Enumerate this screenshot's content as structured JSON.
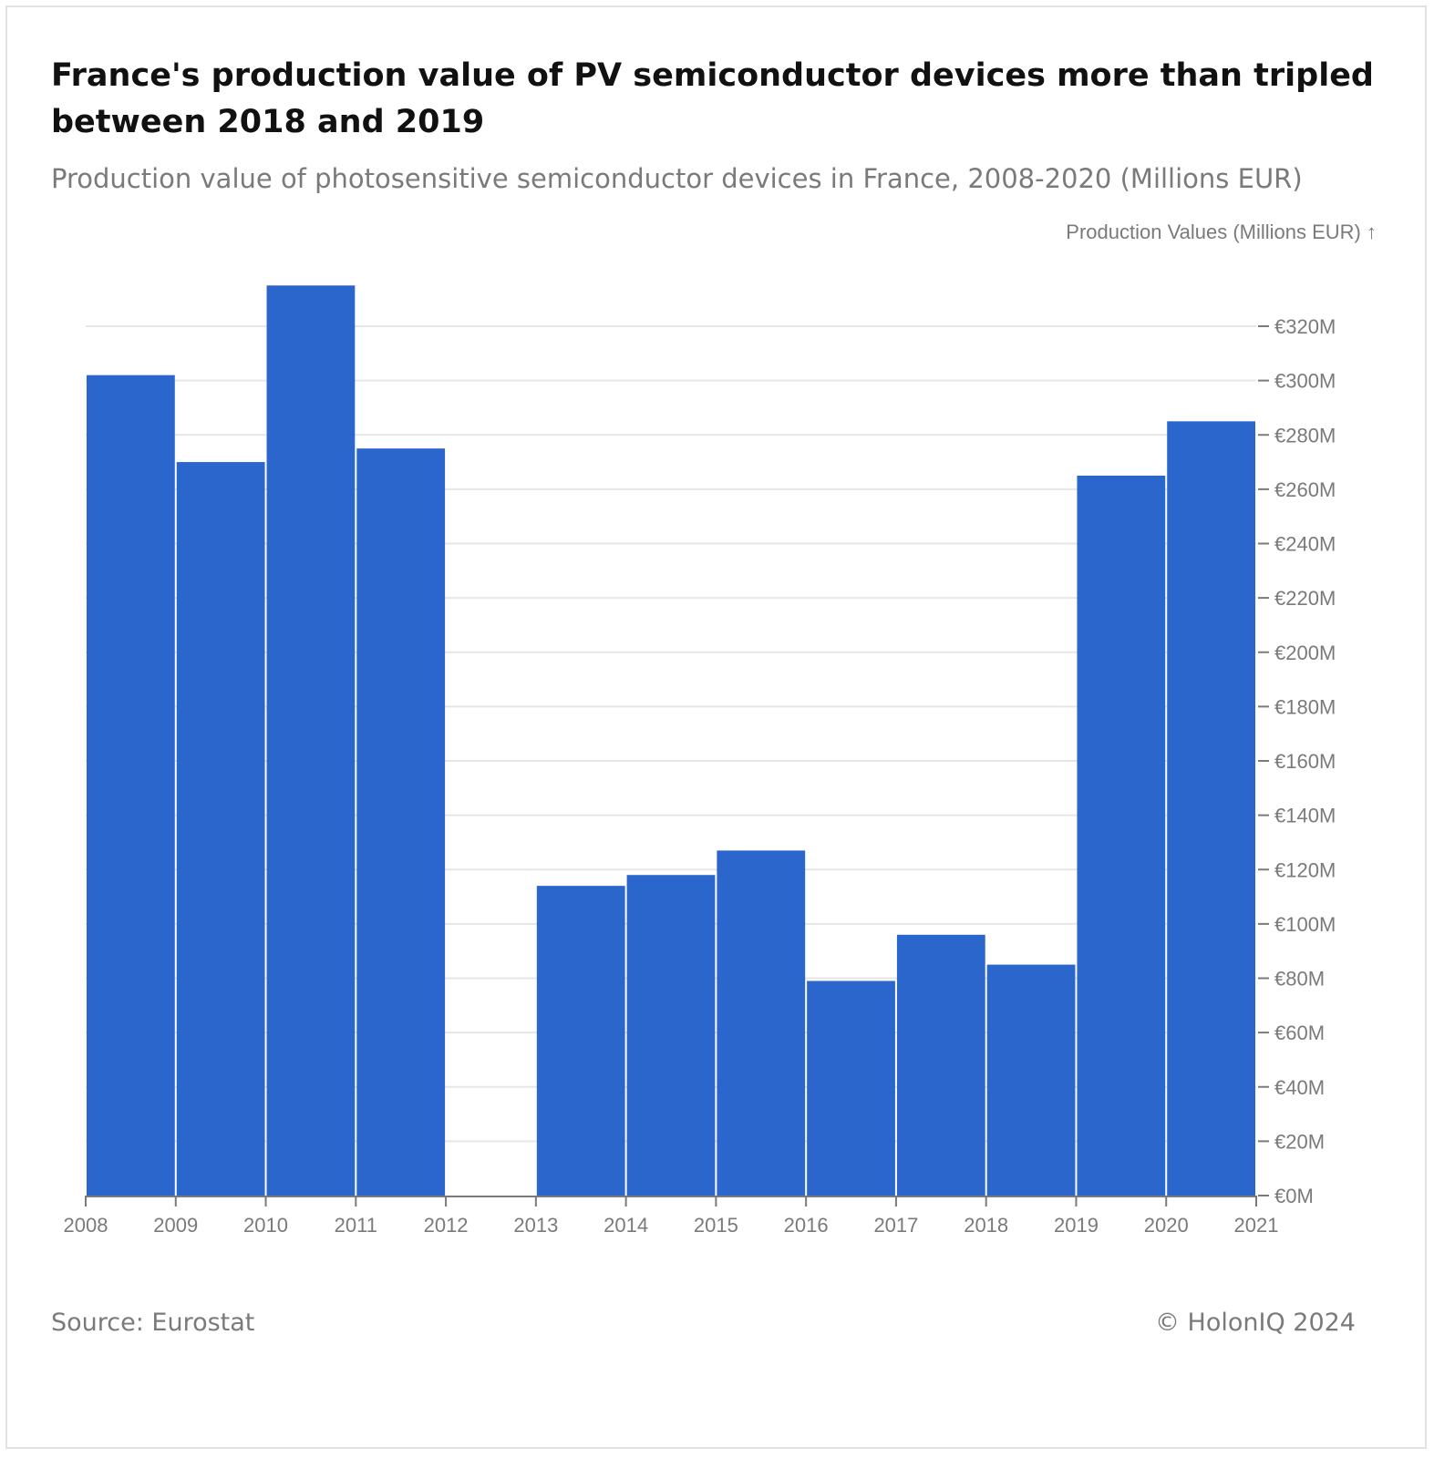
{
  "title": "France's production value of PV semiconductor devices more than tripled between 2018 and 2019",
  "subtitle": "Production value of photosensitive semiconductor devices in France, 2008-2020 (Millions EUR)",
  "footer": {
    "source": "Source: Eurostat",
    "copyright": "© HolonIQ 2024"
  },
  "colors": {
    "bar": "#2a66cc",
    "grid": "#e6e6e6",
    "axis": "#7a7a7a"
  },
  "chart_data": {
    "type": "bar",
    "ylabel": "Production Values (Millions EUR) ↑",
    "x_ticks": [
      "2008",
      "2009",
      "2010",
      "2011",
      "2012",
      "2013",
      "2014",
      "2015",
      "2016",
      "2017",
      "2018",
      "2019",
      "2020",
      "2021"
    ],
    "y_ticks": [
      "€0M",
      "€20M",
      "€40M",
      "€60M",
      "€80M",
      "€100M",
      "€120M",
      "€140M",
      "€160M",
      "€180M",
      "€200M",
      "€220M",
      "€240M",
      "€260M",
      "€280M",
      "€300M",
      "€320M"
    ],
    "ylim": [
      0,
      320
    ],
    "bars": [
      {
        "x0": 2008,
        "x1": 2009,
        "value": 302
      },
      {
        "x0": 2009,
        "x1": 2010,
        "value": 270
      },
      {
        "x0": 2010,
        "x1": 2011,
        "value": 335
      },
      {
        "x0": 2011,
        "x1": 2012,
        "value": 275
      },
      {
        "x0": 2013,
        "x1": 2014,
        "value": 114
      },
      {
        "x0": 2014,
        "x1": 2015,
        "value": 118
      },
      {
        "x0": 2015,
        "x1": 2016,
        "value": 127
      },
      {
        "x0": 2016,
        "x1": 2017,
        "value": 79
      },
      {
        "x0": 2017,
        "x1": 2018,
        "value": 96
      },
      {
        "x0": 2018,
        "x1": 2019,
        "value": 85
      },
      {
        "x0": 2019,
        "x1": 2020,
        "value": 265
      },
      {
        "x0": 2020,
        "x1": 2021,
        "value": 285
      }
    ],
    "grid": true,
    "y_axis_side": "right"
  }
}
